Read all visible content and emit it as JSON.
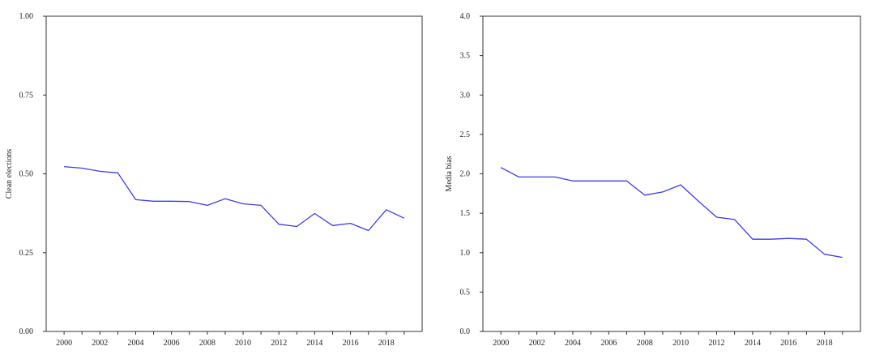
{
  "chart_data": [
    {
      "type": "line",
      "title": "",
      "xlabel": "",
      "ylabel": "Clean elections",
      "xlim": [
        1999,
        2020
      ],
      "ylim": [
        0,
        1
      ],
      "x_tick_labels": [
        "2000",
        "2002",
        "2004",
        "2006",
        "2008",
        "2010",
        "2012",
        "2014",
        "2016",
        "2018"
      ],
      "y_tick_labels": [
        "0.00",
        "0.25",
        "0.50",
        "0.75",
        "1.00"
      ],
      "grid": false,
      "line_color": "#3b3bf0",
      "series": [
        {
          "x": [
            2000,
            2001,
            2002,
            2003,
            2004,
            2005,
            2006,
            2007,
            2008,
            2009,
            2010,
            2011,
            2012,
            2013,
            2014,
            2015,
            2016,
            2017,
            2018,
            2019
          ],
          "values": [
            0.523,
            0.518,
            0.508,
            0.503,
            0.418,
            0.413,
            0.413,
            0.412,
            0.4,
            0.421,
            0.405,
            0.4,
            0.34,
            0.333,
            0.374,
            0.336,
            0.343,
            0.32,
            0.386,
            0.359
          ]
        }
      ]
    },
    {
      "type": "line",
      "title": "",
      "xlabel": "",
      "ylabel": "Media bias",
      "xlim": [
        1999,
        2020
      ],
      "ylim": [
        0,
        4
      ],
      "x_tick_labels": [
        "2000",
        "2002",
        "2004",
        "2006",
        "2008",
        "2010",
        "2012",
        "2014",
        "2016",
        "2018"
      ],
      "y_tick_labels": [
        "0.0",
        "0.5",
        "1.0",
        "1.5",
        "2.0",
        "2.5",
        "3.0",
        "3.5",
        "4.0"
      ],
      "grid": false,
      "line_color": "#3b3bf0",
      "series": [
        {
          "x": [
            2000,
            2001,
            2002,
            2003,
            2004,
            2005,
            2006,
            2007,
            2008,
            2009,
            2010,
            2011,
            2012,
            2013,
            2014,
            2015,
            2016,
            2017,
            2018,
            2019
          ],
          "values": [
            2.08,
            1.96,
            1.96,
            1.96,
            1.91,
            1.91,
            1.91,
            1.91,
            1.73,
            1.77,
            1.86,
            1.65,
            1.45,
            1.42,
            1.17,
            1.17,
            1.18,
            1.17,
            0.98,
            0.94
          ]
        }
      ]
    }
  ]
}
